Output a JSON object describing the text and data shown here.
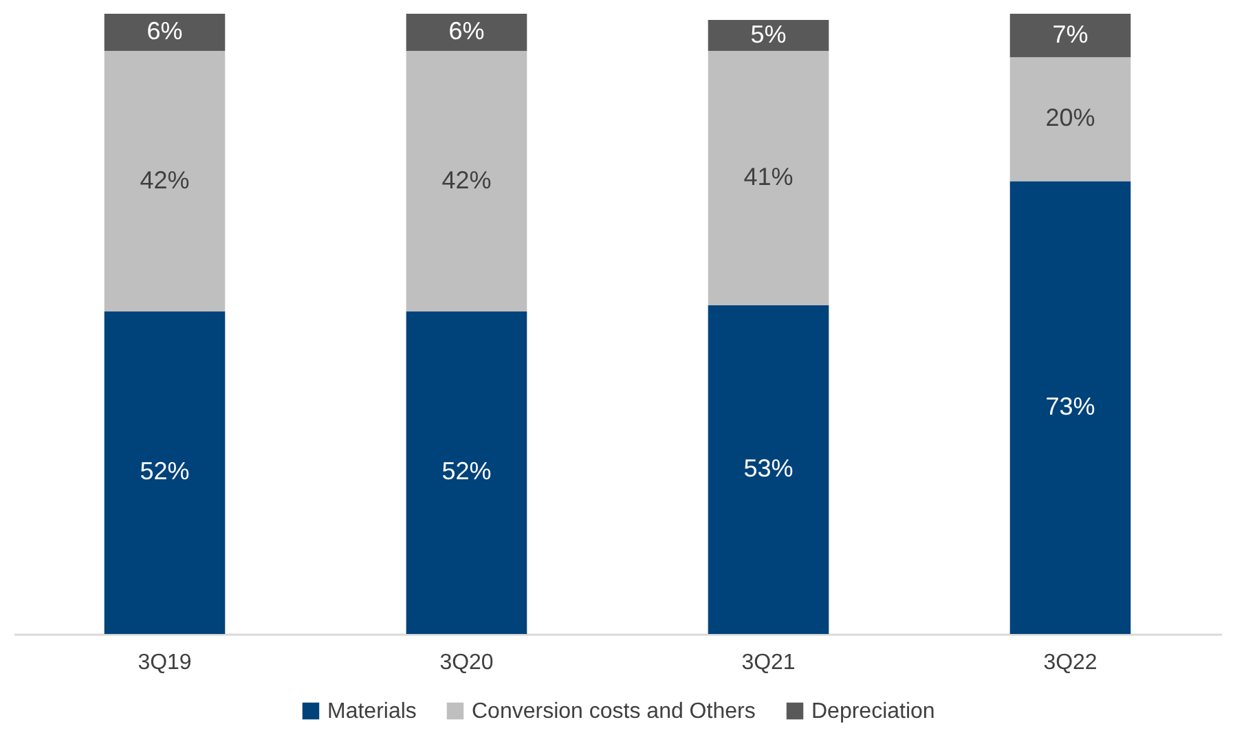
{
  "chart_data": {
    "type": "bar",
    "stacked": true,
    "categories": [
      "3Q19",
      "3Q20",
      "3Q21",
      "3Q22"
    ],
    "series": [
      {
        "name": "Materials",
        "color": "#00427a",
        "values": [
          52,
          52,
          53,
          73
        ],
        "value_labels": [
          "52%",
          "52%",
          "53%",
          "73%"
        ]
      },
      {
        "name": "Conversion costs and Others",
        "color": "#bfbfbf",
        "values": [
          42,
          42,
          41,
          20
        ],
        "value_labels": [
          "42%",
          "42%",
          "41%",
          "20%"
        ]
      },
      {
        "name": "Depreciation",
        "color": "#595959",
        "values": [
          6,
          6,
          5,
          7
        ],
        "value_labels": [
          "6%",
          "6%",
          "5%",
          "7%"
        ]
      }
    ],
    "legend": "bottom"
  }
}
